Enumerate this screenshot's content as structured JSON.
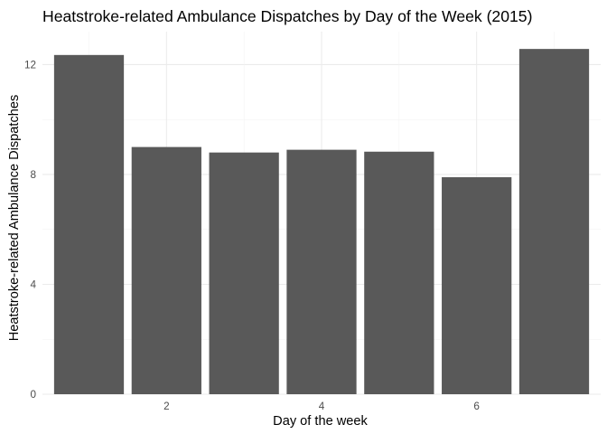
{
  "chart_data": {
    "type": "bar",
    "title": "Heatstroke-related Ambulance Dispatches by Day of the Week (2015)",
    "xlabel": "Day of the week",
    "ylabel": "Heatstroke-related Ambulance Dispatches",
    "x": [
      1,
      2,
      3,
      4,
      5,
      6,
      7
    ],
    "values": [
      12.35,
      9.0,
      8.8,
      8.9,
      8.83,
      7.9,
      12.57
    ],
    "xlim": [
      0.4,
      7.6
    ],
    "ylim": [
      0,
      13.2
    ],
    "xticks": [
      2,
      4,
      6
    ],
    "xtick_labels": [
      "2",
      "4",
      "6"
    ],
    "yticks": [
      0,
      4,
      8,
      12
    ],
    "ytick_labels": [
      "0",
      "4",
      "8",
      "12"
    ],
    "grid": true,
    "bar_color": "#595959",
    "grid_major_color": "#ebebeb",
    "grid_minor_color": "#f2f2f2",
    "background": "#ffffff"
  }
}
